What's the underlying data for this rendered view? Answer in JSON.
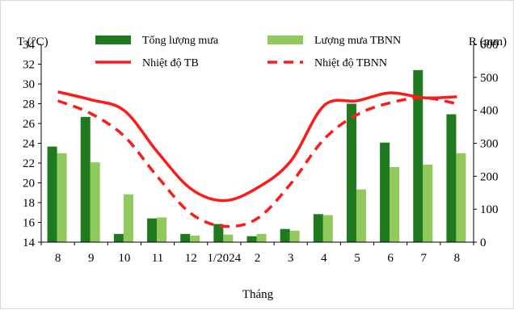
{
  "chart_data": {
    "type": "bar",
    "title": "",
    "xlabel": "Tháng",
    "ylabel_left": "T (°C)",
    "ylabel_right": "R (mm)",
    "categories": [
      "8",
      "9",
      "10",
      "11",
      "12",
      "1/2024",
      "2",
      "3",
      "4",
      "5",
      "6",
      "7",
      "8"
    ],
    "ylim_left": [
      14,
      34
    ],
    "yticks_left": [
      14,
      16,
      18,
      20,
      22,
      24,
      26,
      28,
      30,
      32,
      34
    ],
    "ylim_right": [
      0,
      600
    ],
    "yticks_right": [
      0,
      100,
      200,
      300,
      400,
      500,
      600
    ],
    "grid": false,
    "legend_position": "top",
    "series": [
      {
        "name": "Tổng lượng mưa",
        "type": "bar",
        "axis": "right",
        "color": "#1f7a1f",
        "values": [
          290,
          380,
          25,
          72,
          25,
          55,
          18,
          40,
          85,
          420,
          302,
          522,
          388
        ]
      },
      {
        "name": "Lượng mưa TBNN",
        "type": "bar",
        "axis": "right",
        "color": "#92c95d",
        "values": [
          270,
          242,
          145,
          75,
          20,
          23,
          25,
          35,
          82,
          160,
          228,
          235,
          270
        ]
      },
      {
        "name": "Nhiệt độ TB",
        "type": "line",
        "axis": "left",
        "style": "solid",
        "color": "#ff1a1a",
        "values": [
          29.2,
          28.4,
          27.3,
          23.1,
          19.4,
          18.2,
          19.5,
          22.2,
          27.8,
          28.3,
          29.1,
          28.6,
          28.7
        ]
      },
      {
        "name": "Nhiệt độ TBNN",
        "type": "line",
        "axis": "left",
        "style": "dashed",
        "color": "#ff1a1a",
        "values": [
          28.3,
          27.0,
          24.7,
          20.6,
          16.9,
          15.6,
          16.4,
          19.9,
          24.4,
          26.9,
          28.1,
          28.6,
          28.0
        ]
      }
    ]
  }
}
